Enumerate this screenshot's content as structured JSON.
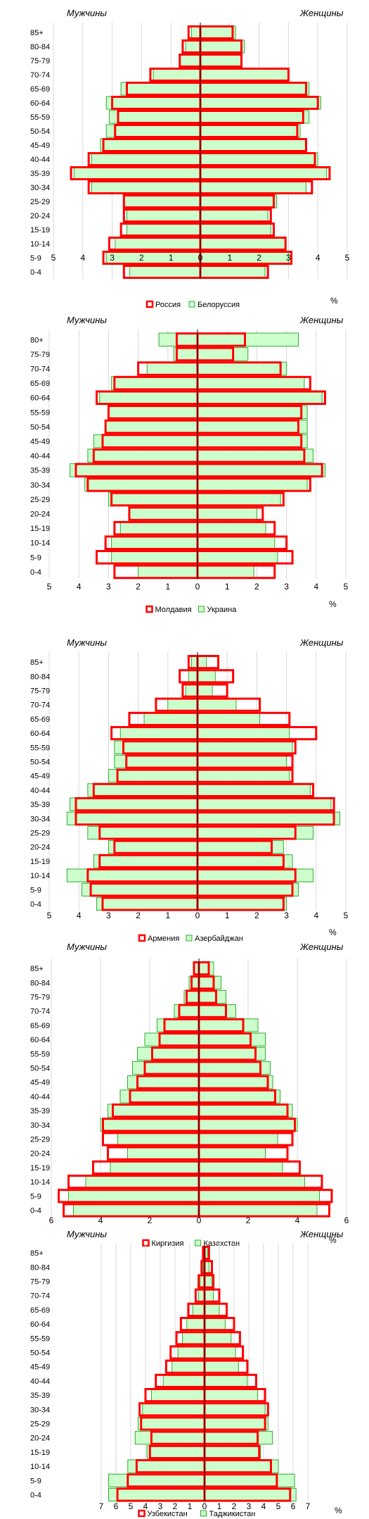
{
  "labels": {
    "men": "Мужчины",
    "women": "Женщины",
    "unit": "%"
  },
  "colors": {
    "green_fill": "#CCFFCC",
    "green_stroke": "#33AA33",
    "red": "#FF0000",
    "grid": "#D9D9D9",
    "axis": "#000000"
  },
  "chart_data": [
    {
      "type": "bar",
      "orientation": "horizontal-population-pyramid",
      "title": "",
      "xlabel": "%",
      "ylabel": "",
      "xlim": [
        -5,
        5
      ],
      "ticks": [
        5,
        4,
        3,
        2,
        1,
        0,
        1,
        2,
        3,
        4,
        5
      ],
      "categories": [
        "85+",
        "80-84",
        "75-79",
        "70-74",
        "65-69",
        "60-64",
        "55-59",
        "50-54",
        "45-49",
        "40-44",
        "35-39",
        "30-34",
        "25-29",
        "20-24",
        "15-19",
        "10-14",
        "5-9",
        "0-4"
      ],
      "legend": {
        "placement": "bottom"
      },
      "series": [
        {
          "name": "Россия",
          "style": "outline",
          "male": [
            0.4,
            0.6,
            0.7,
            1.7,
            2.5,
            3.0,
            2.8,
            2.9,
            3.3,
            3.8,
            4.4,
            3.8,
            2.6,
            2.6,
            2.7,
            3.1,
            3.3,
            2.6
          ],
          "female": [
            1.1,
            1.4,
            1.4,
            3.0,
            3.6,
            4.0,
            3.5,
            3.3,
            3.6,
            3.9,
            4.4,
            3.8,
            2.5,
            2.4,
            2.5,
            2.9,
            3.1,
            2.3
          ]
        },
        {
          "name": "Белоруссия",
          "style": "fill",
          "male": [
            0.3,
            0.5,
            0.7,
            1.6,
            2.7,
            3.2,
            3.1,
            3.2,
            3.4,
            3.7,
            4.3,
            3.7,
            2.6,
            2.5,
            2.5,
            2.9,
            3.2,
            2.4
          ],
          "female": [
            1.2,
            1.5,
            1.4,
            3.0,
            3.7,
            4.1,
            3.7,
            3.4,
            3.6,
            4.0,
            4.3,
            3.6,
            2.6,
            2.3,
            2.4,
            2.9,
            3.0,
            2.2
          ]
        }
      ]
    },
    {
      "type": "bar",
      "orientation": "horizontal-population-pyramid",
      "title": "",
      "xlabel": "%",
      "ylabel": "",
      "xlim": [
        -5,
        5
      ],
      "ticks": [
        5,
        4,
        3,
        2,
        1,
        0,
        1,
        2,
        3,
        4,
        5
      ],
      "categories": [
        "80+",
        "75-79",
        "70-74",
        "65-69",
        "60-64",
        "55-59",
        "50-54",
        "45-49",
        "40-44",
        "35-39",
        "30-34",
        "25-29",
        "20-24",
        "15-19",
        "10-14",
        "5-9",
        "0-4"
      ],
      "legend": {
        "placement": "bottom"
      },
      "series": [
        {
          "name": "Молдавия",
          "style": "outline",
          "male": [
            0.7,
            0.7,
            2.0,
            2.8,
            3.4,
            3.0,
            3.1,
            3.2,
            3.5,
            4.1,
            3.7,
            2.9,
            2.3,
            2.8,
            3.1,
            3.4,
            2.8
          ],
          "female": [
            1.6,
            1.2,
            2.8,
            3.8,
            4.3,
            3.5,
            3.4,
            3.5,
            3.6,
            4.2,
            3.8,
            2.9,
            2.2,
            2.6,
            3.0,
            3.2,
            2.6
          ]
        },
        {
          "name": "Украина",
          "style": "fill",
          "male": [
            1.3,
            0.8,
            1.7,
            2.9,
            3.3,
            3.0,
            3.1,
            3.5,
            3.7,
            4.3,
            3.8,
            3.0,
            2.3,
            2.6,
            2.9,
            2.9,
            2.0
          ],
          "female": [
            3.4,
            1.7,
            3.0,
            3.6,
            4.2,
            3.7,
            3.7,
            3.7,
            3.9,
            4.3,
            3.7,
            2.8,
            2.0,
            2.3,
            2.6,
            2.7,
            1.9
          ]
        }
      ]
    },
    {
      "type": "bar",
      "orientation": "horizontal-population-pyramid",
      "title": "",
      "xlabel": "%",
      "ylabel": "",
      "xlim": [
        -5,
        5
      ],
      "ticks": [
        5,
        4,
        3,
        2,
        1,
        0,
        1,
        2,
        3,
        4,
        5
      ],
      "categories": [
        "85+",
        "80-84",
        "75-79",
        "70-74",
        "65-69",
        "60-64",
        "55-59",
        "50-54",
        "45-49",
        "40-44",
        "35-39",
        "30-34",
        "25-29",
        "20-24",
        "15-19",
        "10-14",
        "5-9",
        "0-4"
      ],
      "legend": {
        "placement": "bottom"
      },
      "series": [
        {
          "name": "Армения",
          "style": "outline",
          "male": [
            0.3,
            0.6,
            0.5,
            1.4,
            2.3,
            2.9,
            2.5,
            2.4,
            2.7,
            3.5,
            4.1,
            4.1,
            3.3,
            2.8,
            3.3,
            3.7,
            3.6,
            3.2
          ],
          "female": [
            0.7,
            1.2,
            1.0,
            2.1,
            3.1,
            4.0,
            3.3,
            3.2,
            3.2,
            3.9,
            4.6,
            4.6,
            3.3,
            2.5,
            2.9,
            3.3,
            3.2,
            2.9
          ]
        },
        {
          "name": "Азербайджан",
          "style": "fill",
          "male": [
            0.2,
            0.3,
            0.4,
            1.0,
            1.8,
            2.6,
            2.8,
            2.8,
            3.0,
            3.7,
            4.3,
            4.4,
            3.7,
            3.0,
            3.5,
            4.4,
            3.9,
            3.4
          ],
          "female": [
            0.3,
            0.6,
            0.5,
            1.3,
            2.1,
            3.1,
            3.2,
            3.0,
            3.1,
            3.8,
            4.5,
            4.8,
            3.9,
            2.9,
            3.2,
            3.9,
            3.4,
            3.0
          ]
        }
      ]
    },
    {
      "type": "bar",
      "orientation": "horizontal-population-pyramid",
      "title": "",
      "xlabel": "%",
      "ylabel": "",
      "xlim": [
        -6,
        6
      ],
      "ticks": [
        6,
        4,
        2,
        0,
        2,
        4,
        6
      ],
      "categories": [
        "85+",
        "80-84",
        "75-79",
        "70-74",
        "65-69",
        "60-64",
        "55-59",
        "50-54",
        "45-49",
        "40-44",
        "35-39",
        "30-34",
        "25-29",
        "20-24",
        "15-19",
        "10-14",
        "5-9",
        "0-4"
      ],
      "legend": {
        "placement": "bottom"
      },
      "series": [
        {
          "name": "Киргизия",
          "style": "outline",
          "male": [
            0.2,
            0.3,
            0.5,
            0.8,
            1.4,
            1.6,
            1.9,
            2.2,
            2.5,
            2.8,
            3.5,
            3.9,
            3.9,
            3.7,
            4.3,
            5.3,
            5.7,
            5.5
          ],
          "female": [
            0.4,
            0.6,
            0.7,
            1.1,
            1.8,
            2.1,
            2.3,
            2.5,
            2.8,
            3.1,
            3.6,
            3.9,
            3.8,
            3.6,
            4.1,
            5.0,
            5.4,
            5.3
          ]
        },
        {
          "name": "Казахстан",
          "style": "fill",
          "male": [
            0.2,
            0.4,
            0.6,
            1.0,
            1.7,
            2.2,
            2.5,
            2.7,
            2.9,
            3.2,
            3.7,
            4.0,
            3.3,
            2.9,
            3.6,
            4.6,
            5.3,
            5.1
          ],
          "female": [
            0.6,
            0.9,
            1.1,
            1.5,
            2.4,
            2.7,
            2.7,
            2.9,
            3.0,
            3.3,
            3.8,
            4.0,
            3.2,
            2.7,
            3.4,
            4.3,
            4.9,
            4.8
          ]
        }
      ]
    },
    {
      "type": "bar",
      "orientation": "horizontal-population-pyramid",
      "title": "",
      "xlabel": "%",
      "ylabel": "",
      "xlim": [
        -7,
        7
      ],
      "ticks": [
        7,
        6,
        5,
        4,
        3,
        2,
        1,
        0,
        1,
        2,
        3,
        4,
        5,
        6,
        7
      ],
      "categories": [
        "85+",
        "80-84",
        "75-79",
        "70-74",
        "65-69",
        "60-64",
        "55-59",
        "50-54",
        "45-49",
        "40-44",
        "35-39",
        "30-34",
        "25-29",
        "20-24",
        "15-19",
        "10-14",
        "5-9",
        "0-4"
      ],
      "legend": {
        "placement": "bottom"
      },
      "series": [
        {
          "name": "Узбекистан",
          "style": "outline",
          "male": [
            0.1,
            0.2,
            0.4,
            0.6,
            1.1,
            1.6,
            1.9,
            2.3,
            2.6,
            3.3,
            4.0,
            4.4,
            4.3,
            3.6,
            3.7,
            4.6,
            5.2,
            5.9
          ],
          "female": [
            0.3,
            0.5,
            0.6,
            1.0,
            1.5,
            2.0,
            2.4,
            2.6,
            2.9,
            3.5,
            4.1,
            4.3,
            4.1,
            3.6,
            3.7,
            4.5,
            4.9,
            5.8
          ]
        },
        {
          "name": "Таджикистан",
          "style": "fill",
          "male": [
            0.1,
            0.1,
            0.3,
            0.4,
            0.8,
            1.2,
            1.5,
            1.8,
            2.2,
            2.8,
            3.6,
            4.2,
            4.5,
            4.7,
            3.9,
            5.2,
            6.5,
            6.5
          ],
          "female": [
            0.2,
            0.3,
            0.5,
            0.6,
            1.0,
            1.4,
            1.8,
            2.1,
            2.3,
            2.9,
            3.6,
            4.1,
            4.3,
            4.6,
            3.8,
            5.0,
            6.1,
            6.2
          ]
        }
      ]
    }
  ]
}
